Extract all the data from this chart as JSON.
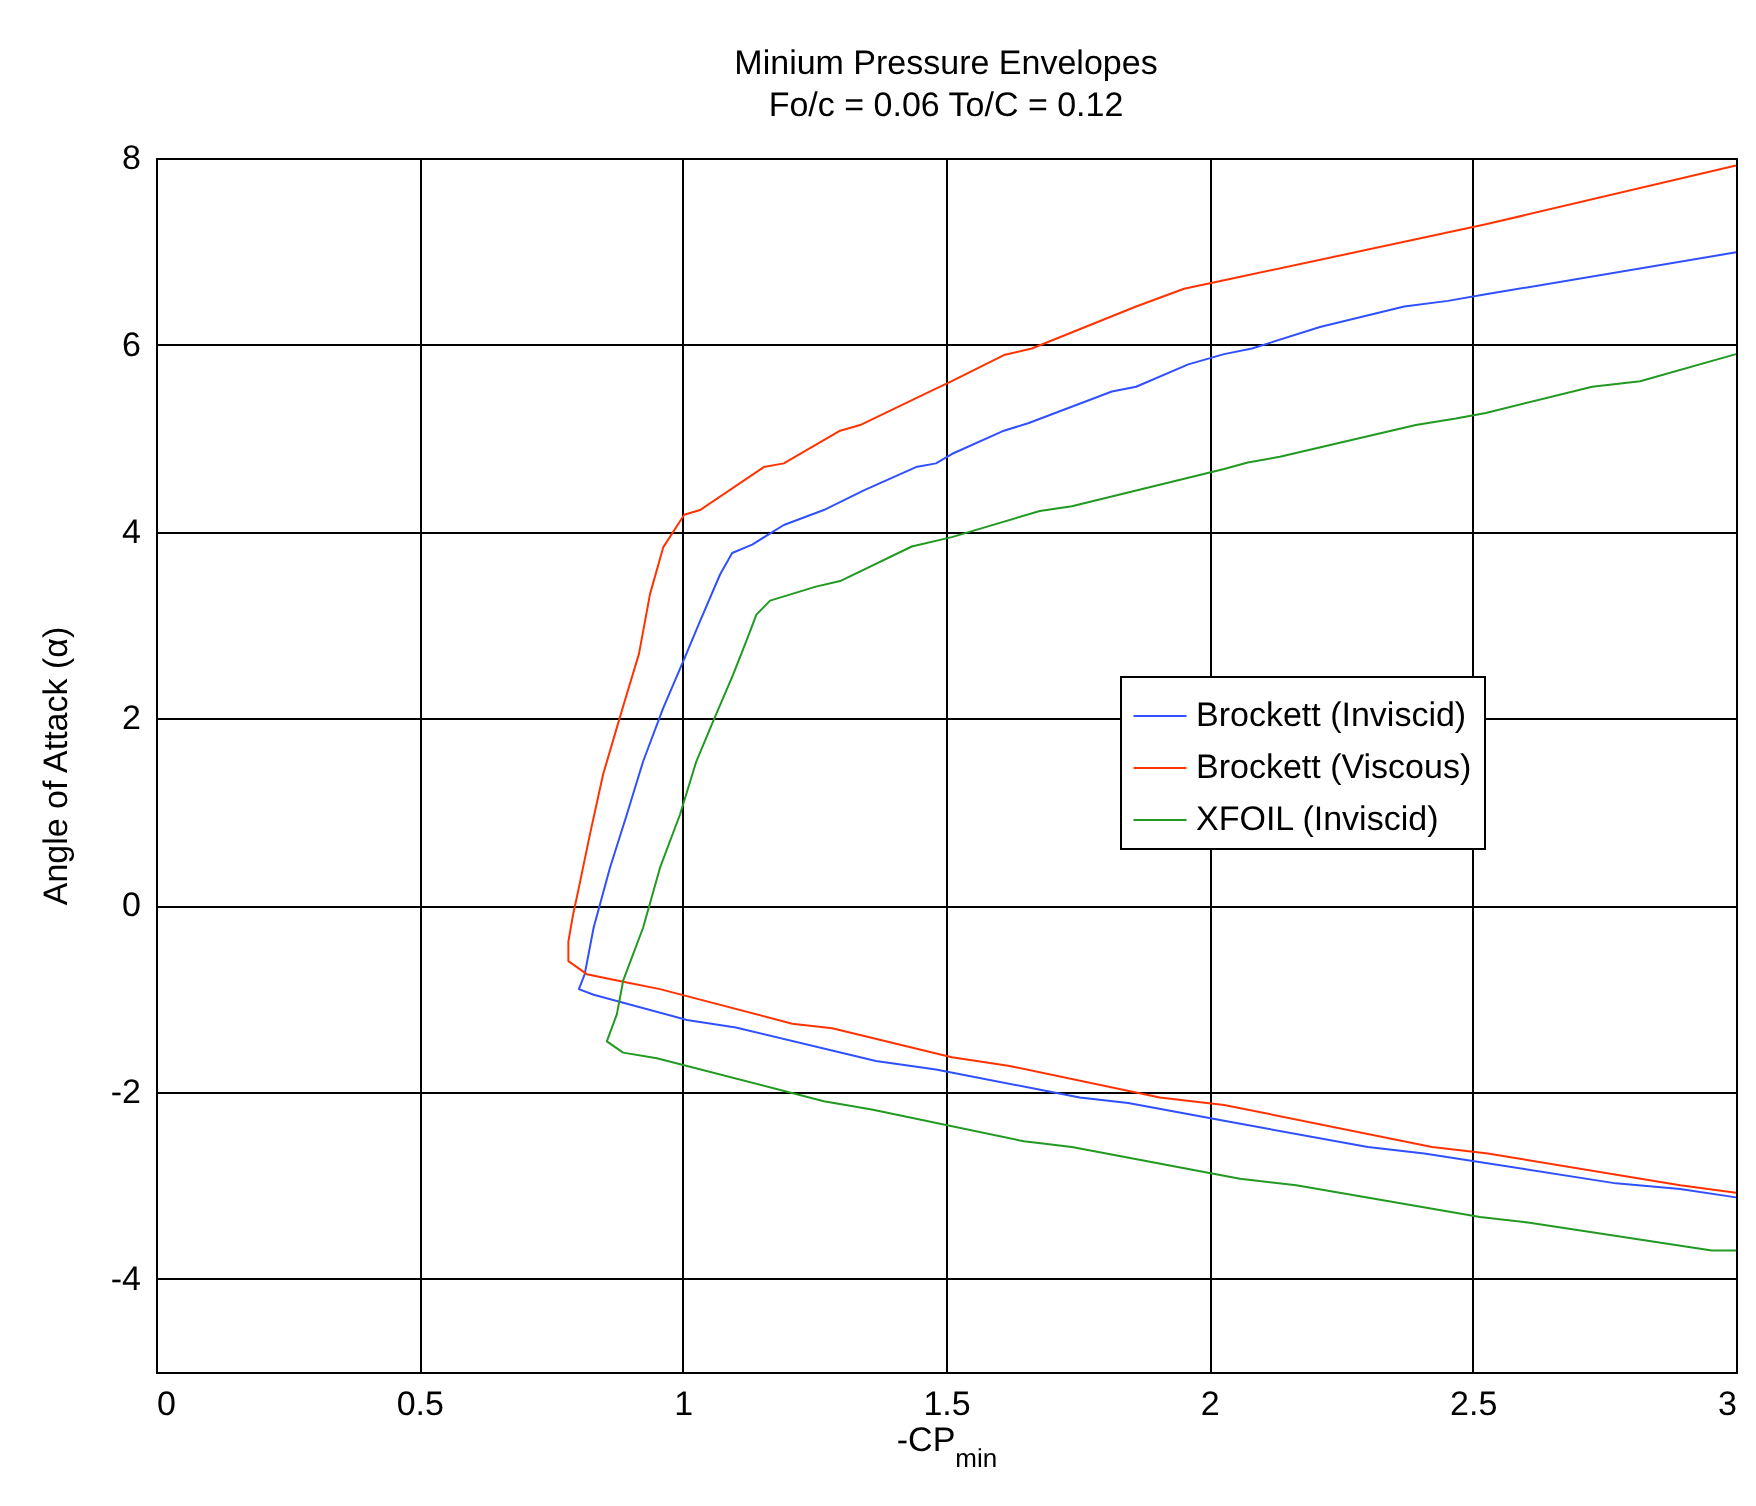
{
  "chart_data": {
    "type": "line",
    "title": "Minium Pressure Envelopes",
    "subtitle": "Fo/c = 0.06   To/C = 0.12",
    "xlabel": "-CP$_{min}$",
    "ylabel": "Angle of Attack (α)",
    "xlim": [
      0,
      3
    ],
    "xticks": [
      0,
      0.5,
      1,
      1.5,
      2,
      2.5,
      3
    ],
    "ylim": [
      -5,
      8
    ],
    "yticks": [
      -4,
      -2,
      0,
      2,
      4,
      6,
      8
    ],
    "grid": true,
    "legend": "right",
    "line_style": "solid",
    "marker": "none",
    "series": [
      {
        "name": "Brockett (Inviscid)",
        "color": "#3050ff",
        "x": [
          3,
          2.525,
          2.453,
          2.37,
          2.21,
          2.081,
          2.028,
          1.96,
          1.861,
          1.815,
          1.656,
          1.61,
          1.511,
          1.481,
          1.443,
          1.344,
          1.268,
          1.192,
          1.132,
          1.094,
          1.071,
          1.033,
          1.001,
          0.963,
          0.925,
          0.894,
          0.862,
          0.831,
          0.814,
          0.803,
          0.831,
          1.008,
          1.101,
          1.367,
          1.481,
          1.754,
          1.846,
          2.028,
          2.301,
          2.408,
          2.772,
          2.894,
          3
        ],
        "values": [
          6.99,
          6.54,
          6.47,
          6.41,
          6.19,
          5.96,
          5.9,
          5.79,
          5.55,
          5.5,
          5.16,
          5.08,
          4.83,
          4.73,
          4.69,
          4.44,
          4.23,
          4.07,
          3.86,
          3.77,
          3.54,
          3.04,
          2.61,
          2.11,
          1.54,
          0.97,
          0.4,
          -0.24,
          -0.74,
          -0.9,
          -0.96,
          -1.23,
          -1.31,
          -1.67,
          -1.76,
          -2.06,
          -2.12,
          -2.31,
          -2.59,
          -2.66,
          -2.98,
          -3.04,
          -3.13
        ]
      },
      {
        "name": "Brockett (Viscous)",
        "color": "#ff3300",
        "x": [
          3,
          2.525,
          2.028,
          1.952,
          1.861,
          1.663,
          1.61,
          1.511,
          1.466,
          1.337,
          1.299,
          1.192,
          1.154,
          1.033,
          1.003,
          0.963,
          0.938,
          0.917,
          0.894,
          0.875,
          0.849,
          0.824,
          0.803,
          0.792,
          0.783,
          0.783,
          0.818,
          0.894,
          0.957,
          1.208,
          1.284,
          1.511,
          1.618,
          1.906,
          2.028,
          2.423,
          2.529,
          2.894,
          3
        ],
        "values": [
          7.92,
          7.29,
          6.69,
          6.6,
          6.41,
          5.96,
          5.89,
          5.61,
          5.49,
          5.14,
          5.08,
          4.73,
          4.69,
          4.23,
          4.18,
          3.83,
          3.33,
          2.69,
          2.26,
          1.9,
          1.4,
          0.76,
          0.19,
          -0.1,
          -0.39,
          -0.6,
          -0.74,
          -0.83,
          -0.9,
          -1.27,
          -1.32,
          -1.63,
          -1.72,
          -2.06,
          -2.14,
          -2.59,
          -2.66,
          -3,
          -3.08
        ]
      },
      {
        "name": "XFOIL (Inviscid)",
        "color": "#229922",
        "x": [
          3,
          2.818,
          2.727,
          2.525,
          2.468,
          2.392,
          2.134,
          2.073,
          2.028,
          1.739,
          1.678,
          1.511,
          1.435,
          1.299,
          1.253,
          1.166,
          1.14,
          1.121,
          1.096,
          1.058,
          1.026,
          0.995,
          0.957,
          0.925,
          0.887,
          0.875,
          0.856,
          0.887,
          0.951,
          1.268,
          1.359,
          1.648,
          1.739,
          2.058,
          2.165,
          2.514,
          2.605,
          2.954,
          3
        ],
        "values": [
          5.9,
          5.61,
          5.55,
          5.27,
          5.21,
          5.14,
          4.8,
          4.74,
          4.67,
          4.27,
          4.22,
          3.94,
          3.84,
          3.47,
          3.41,
          3.26,
          3.11,
          2.83,
          2.47,
          1.97,
          1.54,
          0.97,
          0.4,
          -0.24,
          -0.81,
          -1.17,
          -1.46,
          -1.58,
          -1.64,
          -2.1,
          -2.19,
          -2.53,
          -2.59,
          -2.93,
          -3,
          -3.34,
          -3.4,
          -3.7,
          -3.7
        ]
      }
    ]
  }
}
